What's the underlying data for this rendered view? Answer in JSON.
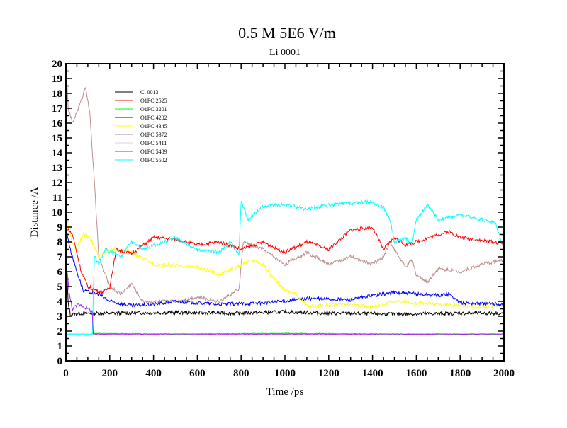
{
  "chart_data": {
    "type": "line",
    "title": "0.5 M 5E6 V/m",
    "subtitle": "Li 0001",
    "xlabel": "Time /ps",
    "ylabel": "Distance /A",
    "xlim": [
      0,
      2000
    ],
    "ylim": [
      0,
      20
    ],
    "xticks": [
      0,
      200,
      400,
      600,
      800,
      1000,
      1200,
      1400,
      1600,
      1800,
      2000
    ],
    "yticks": [
      0,
      1,
      2,
      3,
      4,
      5,
      6,
      7,
      8,
      9,
      10,
      11,
      12,
      13,
      14,
      15,
      16,
      17,
      18,
      19,
      20
    ],
    "grid": false,
    "legend_position": "top-left",
    "series": [
      {
        "name": "Cl 0013",
        "color": "#000000",
        "points": [
          [
            0,
            7
          ],
          [
            10,
            4
          ],
          [
            20,
            3.1
          ],
          [
            60,
            3.2
          ],
          [
            200,
            3.2
          ],
          [
            500,
            3.25
          ],
          [
            800,
            3.2
          ],
          [
            1000,
            3.3
          ],
          [
            1200,
            3.2
          ],
          [
            1500,
            3.15
          ],
          [
            1800,
            3.2
          ],
          [
            2000,
            3.2
          ]
        ]
      },
      {
        "name": "O1PC 2525",
        "color": "#ff0000",
        "points": [
          [
            0,
            9
          ],
          [
            30,
            8.5
          ],
          [
            70,
            6
          ],
          [
            100,
            5
          ],
          [
            130,
            4.8
          ],
          [
            170,
            4.6
          ],
          [
            200,
            5
          ],
          [
            230,
            7.5
          ],
          [
            300,
            7.2
          ],
          [
            400,
            8.3
          ],
          [
            500,
            8.2
          ],
          [
            600,
            7.8
          ],
          [
            700,
            8
          ],
          [
            800,
            7.5
          ],
          [
            900,
            8
          ],
          [
            1000,
            7.3
          ],
          [
            1100,
            8
          ],
          [
            1200,
            7.5
          ],
          [
            1300,
            8.8
          ],
          [
            1400,
            9
          ],
          [
            1450,
            7.5
          ],
          [
            1500,
            8.3
          ],
          [
            1550,
            7.8
          ],
          [
            1600,
            8
          ],
          [
            1700,
            8.5
          ],
          [
            1750,
            8.7
          ],
          [
            1800,
            8.3
          ],
          [
            1900,
            8.1
          ],
          [
            2000,
            7.9
          ]
        ]
      },
      {
        "name": "O1PC 3201",
        "color": "#00ff00",
        "points": [
          [
            120,
            1.85
          ],
          [
            500,
            1.8
          ],
          [
            1000,
            1.85
          ],
          [
            1500,
            1.8
          ],
          [
            2000,
            1.8
          ]
        ]
      },
      {
        "name": "O1PC 4202",
        "color": "#0000ff",
        "points": [
          [
            0,
            9
          ],
          [
            20,
            7.5
          ],
          [
            50,
            6
          ],
          [
            80,
            4.7
          ],
          [
            150,
            4.5
          ],
          [
            200,
            4
          ],
          [
            300,
            3.7
          ],
          [
            400,
            3.8
          ],
          [
            500,
            4
          ],
          [
            700,
            3.8
          ],
          [
            900,
            3.9
          ],
          [
            1000,
            4
          ],
          [
            1100,
            4.2
          ],
          [
            1300,
            4.1
          ],
          [
            1400,
            4.4
          ],
          [
            1500,
            4.6
          ],
          [
            1600,
            4.5
          ],
          [
            1700,
            4.4
          ],
          [
            1750,
            4.5
          ],
          [
            1800,
            3.9
          ],
          [
            2000,
            3.8
          ]
        ]
      },
      {
        "name": "O1PC 4345",
        "color": "#ffff00",
        "points": [
          [
            0,
            10.5
          ],
          [
            10,
            9
          ],
          [
            40,
            7.5
          ],
          [
            80,
            8.5
          ],
          [
            110,
            8.3
          ],
          [
            150,
            7
          ],
          [
            200,
            7.5
          ],
          [
            300,
            7.3
          ],
          [
            400,
            6.5
          ],
          [
            600,
            6.3
          ],
          [
            700,
            5.8
          ],
          [
            780,
            6.3
          ],
          [
            850,
            6.8
          ],
          [
            900,
            6.5
          ],
          [
            950,
            5.5
          ],
          [
            1000,
            4.8
          ],
          [
            1050,
            4.5
          ],
          [
            1100,
            3.7
          ],
          [
            1300,
            3.8
          ],
          [
            1400,
            3.6
          ],
          [
            1500,
            4
          ],
          [
            1700,
            3.8
          ],
          [
            1900,
            3.6
          ],
          [
            2000,
            3.8
          ]
        ]
      },
      {
        "name": "O1PC 5372",
        "color": "#bc8f8f",
        "points": [
          [
            0,
            20
          ],
          [
            10,
            17
          ],
          [
            30,
            16
          ],
          [
            70,
            17.5
          ],
          [
            90,
            18.5
          ],
          [
            110,
            16.5
          ],
          [
            130,
            12
          ],
          [
            150,
            7
          ],
          [
            200,
            5
          ],
          [
            250,
            4.5
          ],
          [
            300,
            5.2
          ],
          [
            350,
            4
          ],
          [
            500,
            4
          ],
          [
            600,
            4.3
          ],
          [
            700,
            4
          ],
          [
            790,
            4.8
          ],
          [
            810,
            8
          ],
          [
            900,
            7.5
          ],
          [
            1000,
            6.5
          ],
          [
            1100,
            7.3
          ],
          [
            1200,
            6.5
          ],
          [
            1300,
            7
          ],
          [
            1400,
            6.5
          ],
          [
            1450,
            7
          ],
          [
            1480,
            8
          ],
          [
            1500,
            7.5
          ],
          [
            1550,
            6.3
          ],
          [
            1580,
            6.8
          ],
          [
            1600,
            5.8
          ],
          [
            1650,
            5.3
          ],
          [
            1700,
            6.2
          ],
          [
            1800,
            6
          ],
          [
            1900,
            6.5
          ],
          [
            2000,
            6.8
          ]
        ]
      },
      {
        "name": "O1PC 5411",
        "color": "#d3d3d3",
        "points": [
          [
            0,
            1.8
          ],
          [
            2000,
            1.8
          ]
        ]
      },
      {
        "name": "O1PC 5489",
        "color": "#a020f0",
        "points": [
          [
            0,
            7
          ],
          [
            15,
            4.5
          ],
          [
            30,
            3.5
          ],
          [
            60,
            3.8
          ],
          [
            100,
            3.5
          ],
          [
            120,
            3.3
          ],
          [
            125,
            1.8
          ],
          [
            500,
            1.8
          ],
          [
            1000,
            1.8
          ],
          [
            1500,
            1.8
          ],
          [
            2000,
            1.8
          ]
        ]
      },
      {
        "name": "O1PC 5502",
        "color": "#00ffff",
        "points": [
          [
            0,
            1.8
          ],
          [
            120,
            1.8
          ],
          [
            130,
            7
          ],
          [
            150,
            6.5
          ],
          [
            180,
            7.5
          ],
          [
            250,
            7
          ],
          [
            300,
            8
          ],
          [
            350,
            7.5
          ],
          [
            450,
            8
          ],
          [
            500,
            8.3
          ],
          [
            600,
            7.5
          ],
          [
            700,
            7.3
          ],
          [
            750,
            8
          ],
          [
            790,
            7.2
          ],
          [
            800,
            10.8
          ],
          [
            830,
            9.5
          ],
          [
            900,
            10.4
          ],
          [
            1000,
            10.5
          ],
          [
            1100,
            10.2
          ],
          [
            1200,
            10.5
          ],
          [
            1300,
            10.6
          ],
          [
            1400,
            10.7
          ],
          [
            1450,
            10.3
          ],
          [
            1480,
            9.5
          ],
          [
            1500,
            8
          ],
          [
            1550,
            8.3
          ],
          [
            1580,
            7.8
          ],
          [
            1600,
            9.5
          ],
          [
            1650,
            10.5
          ],
          [
            1700,
            9.5
          ],
          [
            1800,
            9.8
          ],
          [
            1900,
            9.5
          ],
          [
            1960,
            9.3
          ],
          [
            1990,
            8
          ]
        ]
      }
    ]
  }
}
